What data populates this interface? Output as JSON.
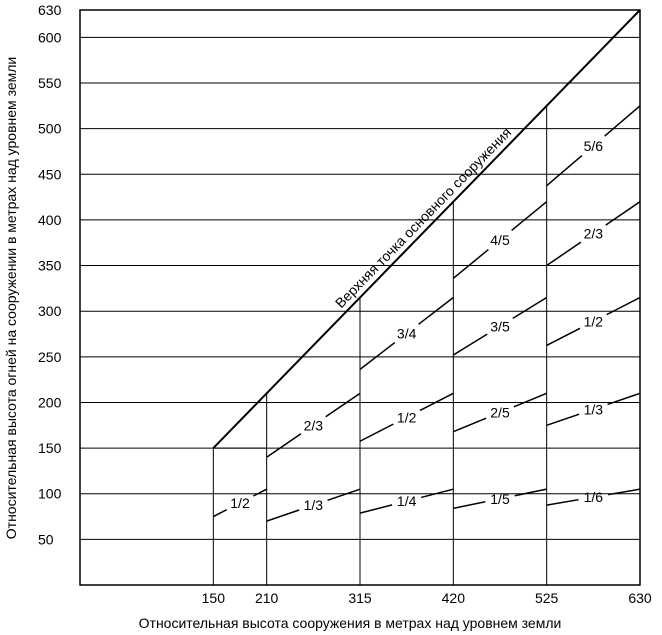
{
  "chart_data": {
    "type": "line",
    "title": "",
    "xlabel": "Относительная высота сооружения в метрах над уровнем земли",
    "ylabel": "Относительная высота огней на сооружении в метрах над уровнем земли",
    "xlim": [
      0,
      630
    ],
    "ylim": [
      0,
      630
    ],
    "x_ticks": [
      150,
      210,
      315,
      420,
      525,
      630
    ],
    "y_ticks": [
      50,
      100,
      150,
      200,
      250,
      300,
      350,
      400,
      450,
      500,
      550,
      600,
      630
    ],
    "grid": "horizontal",
    "top_line": {
      "label": "Верхняя точка основного сооружения",
      "points": [
        [
          150,
          150
        ],
        [
          630,
          630
        ]
      ]
    },
    "segments": [
      {
        "label": "1/2",
        "x": [
          150,
          210
        ],
        "y": [
          75,
          105
        ]
      },
      {
        "label": "1/3",
        "x": [
          210,
          315
        ],
        "y": [
          70,
          105
        ]
      },
      {
        "label": "2/3",
        "x": [
          210,
          315
        ],
        "y": [
          140,
          210
        ]
      },
      {
        "label": "1/4",
        "x": [
          315,
          420
        ],
        "y": [
          78.75,
          105
        ]
      },
      {
        "label": "1/2",
        "x": [
          315,
          420
        ],
        "y": [
          157.5,
          210
        ]
      },
      {
        "label": "3/4",
        "x": [
          315,
          420
        ],
        "y": [
          236.25,
          315
        ]
      },
      {
        "label": "1/5",
        "x": [
          420,
          525
        ],
        "y": [
          84,
          105
        ]
      },
      {
        "label": "2/5",
        "x": [
          420,
          525
        ],
        "y": [
          168,
          210
        ]
      },
      {
        "label": "3/5",
        "x": [
          420,
          525
        ],
        "y": [
          252,
          315
        ]
      },
      {
        "label": "4/5",
        "x": [
          420,
          525
        ],
        "y": [
          336,
          420
        ]
      },
      {
        "label": "1/6",
        "x": [
          525,
          630
        ],
        "y": [
          87.5,
          105
        ]
      },
      {
        "label": "1/3",
        "x": [
          525,
          630
        ],
        "y": [
          175,
          210
        ]
      },
      {
        "label": "1/2",
        "x": [
          525,
          630
        ],
        "y": [
          262.5,
          315
        ]
      },
      {
        "label": "2/3",
        "x": [
          525,
          630
        ],
        "y": [
          350,
          420
        ]
      },
      {
        "label": "5/6",
        "x": [
          525,
          630
        ],
        "y": [
          437.5,
          525
        ]
      }
    ]
  }
}
